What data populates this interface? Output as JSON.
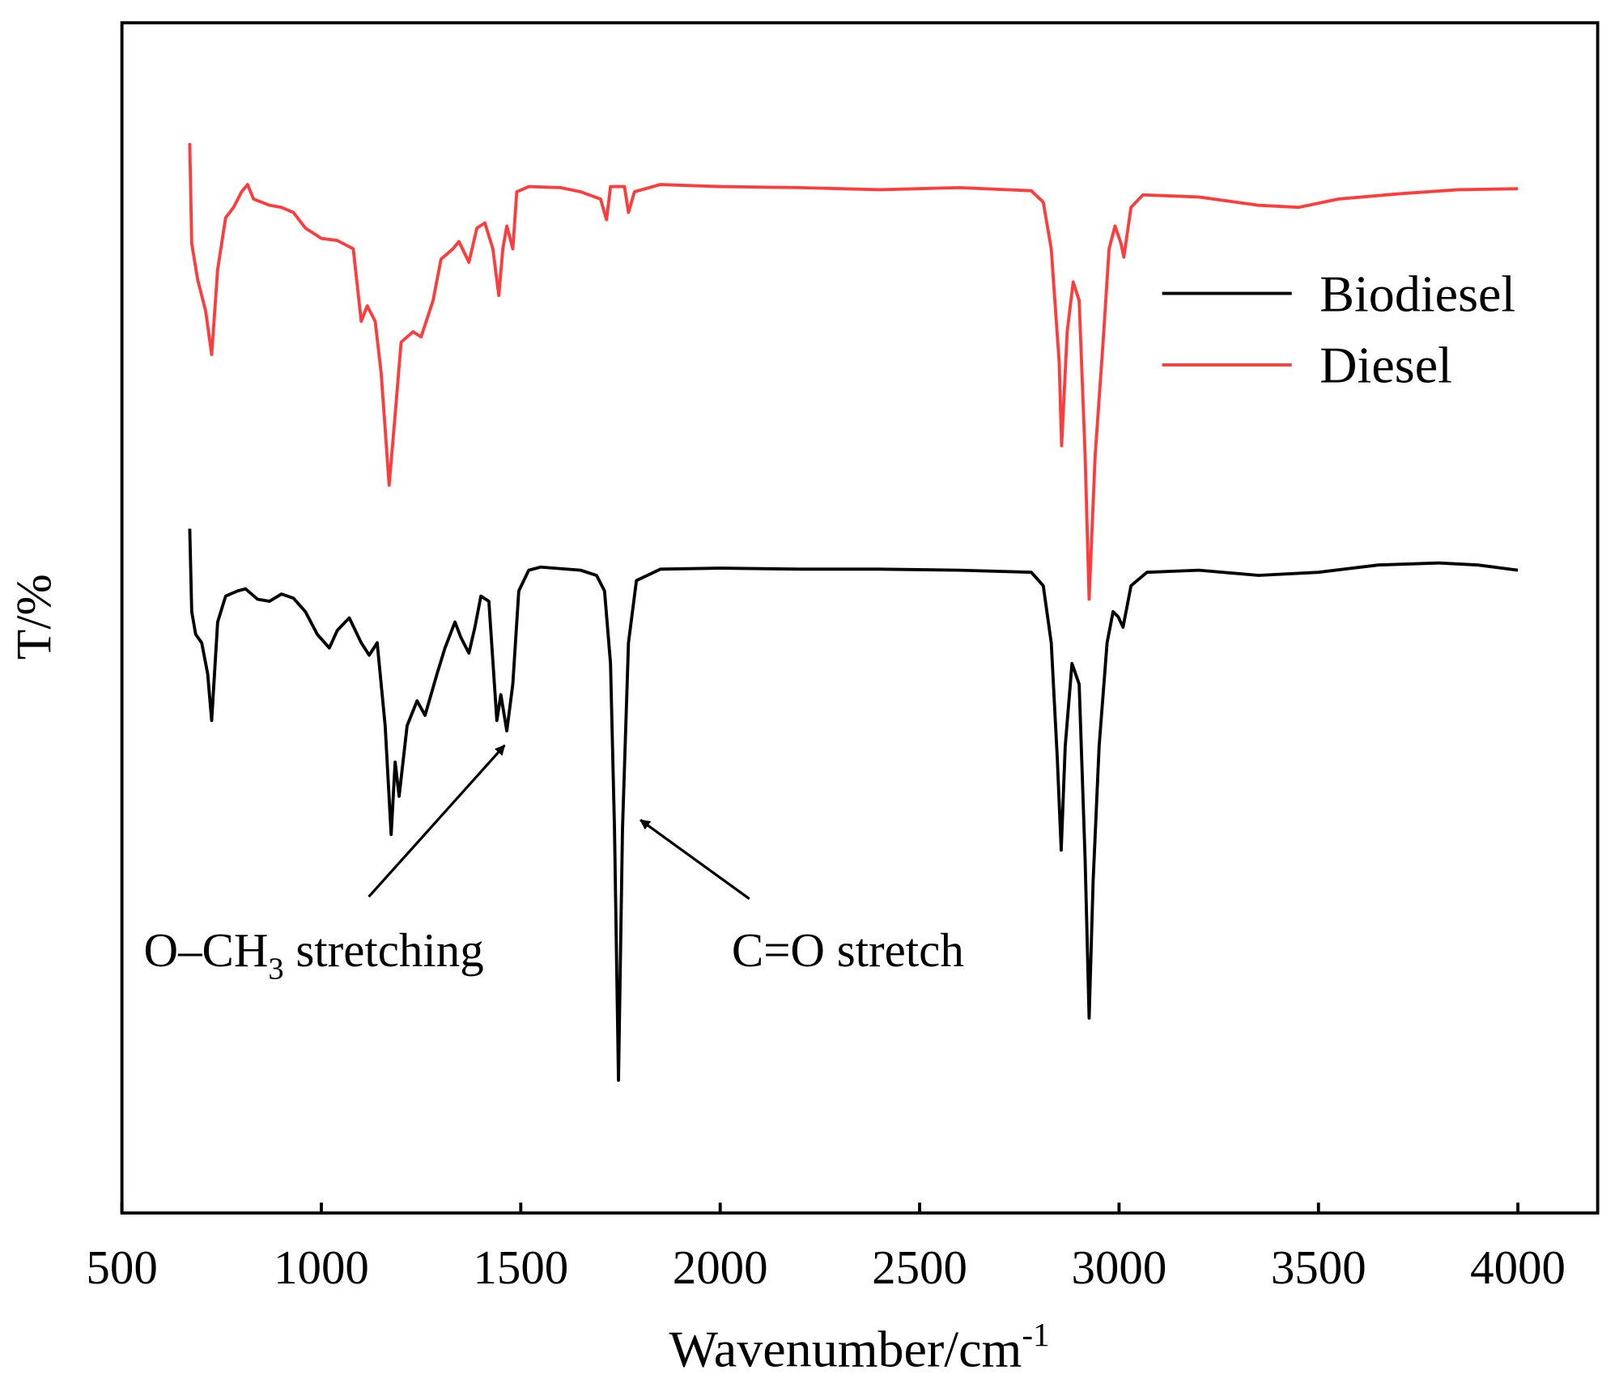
{
  "chart_data": {
    "type": "line",
    "x_label": {
      "text": "Wavenumber/cm",
      "sup": "-1"
    },
    "y_label": "T/%",
    "xlim": [
      500,
      4200
    ],
    "xticks": [
      500,
      1000,
      1500,
      2000,
      2500,
      3000,
      3500,
      4000
    ],
    "ylim": [
      0,
      1148
    ],
    "legend": "upper right",
    "annotations": [
      {
        "parts": [
          "O–CH",
          "3",
          " stretching"
        ]
      },
      {
        "parts": [
          "C=O stretch"
        ]
      }
    ],
    "series": [
      {
        "name": "Biodiesel",
        "color": "#000000",
        "x": [
          670,
          675,
          685,
          700,
          715,
          725,
          740,
          760,
          790,
          810,
          840,
          870,
          900,
          930,
          960,
          990,
          1020,
          1040,
          1070,
          1100,
          1120,
          1140,
          1160,
          1175,
          1185,
          1195,
          1215,
          1240,
          1260,
          1290,
          1310,
          1335,
          1350,
          1370,
          1385,
          1400,
          1420,
          1440,
          1450,
          1465,
          1480,
          1495,
          1520,
          1550,
          1650,
          1690,
          1710,
          1725,
          1735,
          1745,
          1755,
          1770,
          1790,
          1850,
          2000,
          2200,
          2400,
          2600,
          2780,
          2810,
          2830,
          2845,
          2855,
          2865,
          2882,
          2900,
          2915,
          2925,
          2935,
          2950,
          2970,
          2985,
          2998,
          3010,
          3030,
          3070,
          3200,
          3350,
          3500,
          3650,
          3800,
          3900,
          4000
        ],
        "values": [
          660,
          580,
          558,
          550,
          520,
          475,
          570,
          595,
          600,
          602,
          592,
          590,
          597,
          593,
          580,
          558,
          545,
          562,
          574,
          550,
          538,
          550,
          470,
          365,
          435,
          402,
          470,
          494,
          480,
          520,
          545,
          570,
          555,
          540,
          565,
          595,
          590,
          475,
          500,
          465,
          510,
          600,
          620,
          623,
          620,
          615,
          600,
          530,
          370,
          128,
          370,
          550,
          610,
          621,
          622,
          621,
          621,
          620,
          618,
          605,
          550,
          440,
          350,
          450,
          530,
          510,
          340,
          188,
          320,
          450,
          550,
          580,
          575,
          565,
          605,
          618,
          620,
          615,
          618,
          625,
          627,
          625,
          620
        ]
      },
      {
        "name": "Diesel",
        "color": "#ff3b3b",
        "x": [
          670,
          675,
          690,
          710,
          725,
          740,
          760,
          780,
          800,
          815,
          830,
          870,
          900,
          930,
          960,
          1000,
          1040,
          1080,
          1100,
          1115,
          1135,
          1150,
          1170,
          1185,
          1200,
          1230,
          1250,
          1280,
          1300,
          1330,
          1345,
          1370,
          1390,
          1410,
          1430,
          1445,
          1455,
          1465,
          1480,
          1490,
          1520,
          1600,
          1650,
          1700,
          1715,
          1725,
          1760,
          1770,
          1785,
          1850,
          2000,
          2200,
          2400,
          2600,
          2780,
          2810,
          2830,
          2850,
          2856,
          2870,
          2885,
          2900,
          2915,
          2925,
          2940,
          2960,
          2975,
          2990,
          3005,
          3012,
          3030,
          3060,
          3200,
          3350,
          3450,
          3550,
          3700,
          3850,
          4000
        ],
        "values": [
          1032,
          935,
          900,
          870,
          828,
          910,
          960,
          970,
          985,
          992,
          978,
          972,
          970,
          965,
          950,
          940,
          938,
          930,
          860,
          875,
          860,
          810,
          702,
          770,
          840,
          850,
          845,
          880,
          920,
          930,
          937,
          917,
          950,
          955,
          930,
          885,
          930,
          952,
          930,
          985,
          990,
          989,
          985,
          978,
          958,
          990,
          990,
          965,
          985,
          992,
          990,
          989,
          987,
          989,
          986,
          975,
          930,
          820,
          740,
          850,
          898,
          880,
          730,
          592,
          730,
          840,
          930,
          952,
          935,
          922,
          970,
          982,
          980,
          972,
          970,
          978,
          983,
          987,
          988
        ]
      }
    ]
  }
}
